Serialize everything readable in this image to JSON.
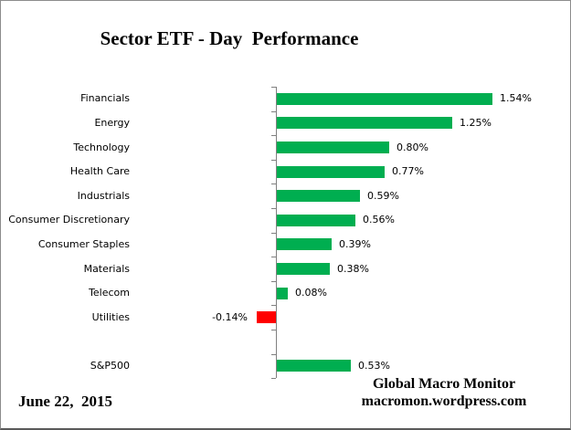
{
  "chart_data": {
    "type": "bar",
    "orientation": "horizontal",
    "title": "Sector ETF - Day  Performance",
    "categories": [
      "Financials",
      "Energy",
      "Technology",
      "Health Care",
      "Industrials",
      "Consumer Discretionary",
      "Consumer Staples",
      "Materials",
      "Telecom",
      "Utilities",
      "",
      "S&P500"
    ],
    "values": [
      1.54,
      1.25,
      0.8,
      0.77,
      0.59,
      0.56,
      0.39,
      0.38,
      0.08,
      -0.14,
      null,
      0.53
    ],
    "value_labels": [
      "1.54%",
      "1.25%",
      "0.80%",
      "0.77%",
      "0.59%",
      "0.56%",
      "0.39%",
      "0.38%",
      "0.08%",
      "-0.14%",
      "",
      "0.53%"
    ],
    "positive_color": "#00AE50",
    "negative_color": "#FF0000",
    "axis_color": "#808080",
    "xlabel": "",
    "ylabel": "",
    "legend": false,
    "grid": false
  },
  "footer": {
    "date": "June 22,  2015",
    "attribution_line1": "Global Macro Monitor",
    "attribution_line2": "macromon.wordpress.com"
  }
}
